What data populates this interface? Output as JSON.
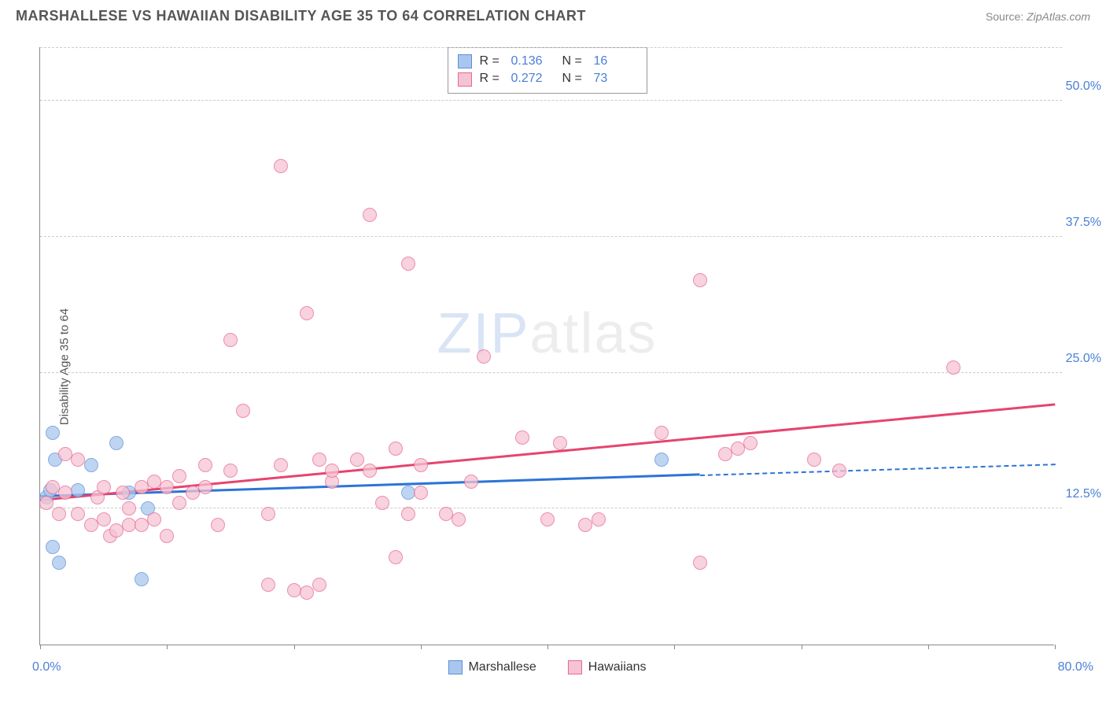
{
  "header": {
    "title": "MARSHALLESE VS HAWAIIAN DISABILITY AGE 35 TO 64 CORRELATION CHART",
    "source_prefix": "Source: ",
    "source_name": "ZipAtlas.com"
  },
  "chart": {
    "type": "scatter",
    "ylabel": "Disability Age 35 to 64",
    "xlim": [
      0,
      80
    ],
    "ylim": [
      0,
      55
    ],
    "x_tick_step": 10,
    "y_ticks": [
      12.5,
      25.0,
      37.5,
      50.0
    ],
    "y_tick_fmt": [
      "12.5%",
      "25.0%",
      "37.5%",
      "50.0%"
    ],
    "xlim_labels": [
      "0.0%",
      "80.0%"
    ],
    "background_color": "#ffffff",
    "grid_color": "#cccccc",
    "axis_color": "#888888",
    "tick_label_color": "#4a7fd8",
    "watermark": {
      "z": "ZIP",
      "rest": "atlas"
    },
    "series": [
      {
        "name": "Marshallese",
        "color_fill": "#a9c7ee",
        "color_stroke": "#5b8fd6",
        "R": "0.136",
        "N": "16",
        "trend": {
          "x1": 0,
          "y1": 13.5,
          "x2": 52,
          "y2": 15.5,
          "dashed_to_x": 80,
          "dashed_to_y": 16.5,
          "color": "#2d74d6"
        },
        "points": [
          [
            0.5,
            13.5
          ],
          [
            0.8,
            14.2
          ],
          [
            1,
            19.5
          ],
          [
            1,
            9.0
          ],
          [
            1.2,
            17.0
          ],
          [
            1.5,
            7.5
          ],
          [
            3,
            14.2
          ],
          [
            4,
            16.5
          ],
          [
            6,
            18.5
          ],
          [
            7,
            14.0
          ],
          [
            8.5,
            12.5
          ],
          [
            8,
            6.0
          ],
          [
            29,
            14.0
          ],
          [
            49,
            17.0
          ]
        ]
      },
      {
        "name": "Hawaiians",
        "color_fill": "#f6c3d3",
        "color_stroke": "#e6698f",
        "R": "0.272",
        "N": "73",
        "trend": {
          "x1": 0,
          "y1": 13.2,
          "x2": 80,
          "y2": 22.0,
          "color": "#e6446f"
        },
        "points": [
          [
            0.5,
            13.0
          ],
          [
            1,
            14.5
          ],
          [
            1.5,
            12.0
          ],
          [
            2,
            17.5
          ],
          [
            2,
            14.0
          ],
          [
            3,
            17.0
          ],
          [
            3,
            12.0
          ],
          [
            4,
            11.0
          ],
          [
            4.5,
            13.5
          ],
          [
            5,
            11.5
          ],
          [
            5,
            14.5
          ],
          [
            5.5,
            10.0
          ],
          [
            6,
            10.5
          ],
          [
            6.5,
            14.0
          ],
          [
            7,
            11.0
          ],
          [
            7,
            12.5
          ],
          [
            8,
            11.0
          ],
          [
            8,
            14.5
          ],
          [
            9,
            11.5
          ],
          [
            9,
            15.0
          ],
          [
            10,
            10.0
          ],
          [
            10,
            14.5
          ],
          [
            11,
            13.0
          ],
          [
            11,
            15.5
          ],
          [
            12,
            14.0
          ],
          [
            13,
            16.5
          ],
          [
            13,
            14.5
          ],
          [
            14,
            11.0
          ],
          [
            15,
            16.0
          ],
          [
            15,
            28.0
          ],
          [
            16,
            21.5
          ],
          [
            18,
            5.5
          ],
          [
            18,
            12.0
          ],
          [
            19,
            44.0
          ],
          [
            19,
            16.5
          ],
          [
            20,
            5.0
          ],
          [
            21,
            4.8
          ],
          [
            21,
            30.5
          ],
          [
            22,
            17.0
          ],
          [
            22,
            5.5
          ],
          [
            23,
            15.0
          ],
          [
            23,
            16.0
          ],
          [
            25,
            17.0
          ],
          [
            26,
            16.0
          ],
          [
            26,
            39.5
          ],
          [
            27,
            13.0
          ],
          [
            28,
            18.0
          ],
          [
            28,
            8.0
          ],
          [
            29,
            35.0
          ],
          [
            29,
            12.0
          ],
          [
            30,
            14.0
          ],
          [
            30,
            16.5
          ],
          [
            32,
            12.0
          ],
          [
            33,
            11.5
          ],
          [
            34,
            15.0
          ],
          [
            35,
            26.5
          ],
          [
            38,
            19.0
          ],
          [
            40,
            11.5
          ],
          [
            41,
            18.5
          ],
          [
            43,
            11.0
          ],
          [
            44,
            11.5
          ],
          [
            49,
            19.5
          ],
          [
            52,
            33.5
          ],
          [
            52,
            7.5
          ],
          [
            54,
            17.5
          ],
          [
            55,
            18.0
          ],
          [
            56,
            18.5
          ],
          [
            61,
            17.0
          ],
          [
            63,
            16.0
          ],
          [
            72,
            25.5
          ]
        ]
      }
    ]
  }
}
